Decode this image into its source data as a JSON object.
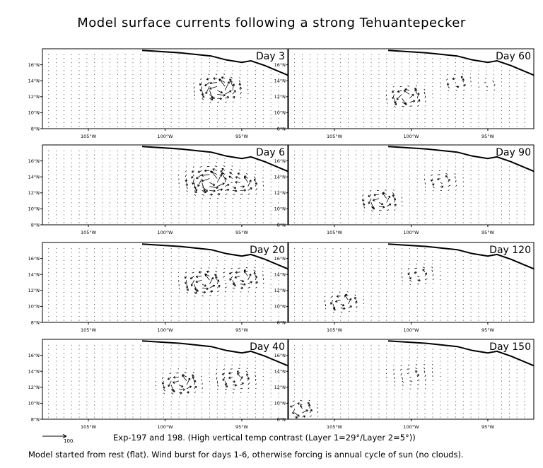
{
  "title": "Model surface currents following a strong Tehuantepecker",
  "footer": {
    "line1": "Exp-197 and 198. (High vertical temp contrast (Layer 1=29°/Layer 2=5°))",
    "line2": "Model started from rest (flat). Wind burst for days 1-6, otherwise forcing is annual cycle of sun (no clouds).",
    "reference_vector_label": "100."
  },
  "chart_data": {
    "type": "vector-field",
    "x_ticks": [
      "105°W",
      "100°W",
      "95°W"
    ],
    "y_ticks": [
      "8°N",
      "10°N",
      "12°N",
      "14°N",
      "16°N"
    ],
    "xlim": [
      -108,
      -92
    ],
    "ylim": [
      8,
      18
    ],
    "panels": [
      {
        "label": "Day 3",
        "eddies": [
          {
            "lon": -96.5,
            "lat": 13.0,
            "strength": 1.0,
            "radius": 1.3
          }
        ]
      },
      {
        "label": "Day 6",
        "eddies": [
          {
            "lon": -97.0,
            "lat": 13.5,
            "strength": 1.0,
            "radius": 1.5
          },
          {
            "lon": -95.0,
            "lat": 13.0,
            "strength": 0.7,
            "radius": 1.1
          }
        ]
      },
      {
        "label": "Day 20",
        "eddies": [
          {
            "lon": -97.5,
            "lat": 13.0,
            "strength": 0.8,
            "radius": 1.3
          },
          {
            "lon": -95.0,
            "lat": 13.5,
            "strength": 0.7,
            "radius": 1.2
          }
        ]
      },
      {
        "label": "Day 40",
        "eddies": [
          {
            "lon": -99.0,
            "lat": 12.5,
            "strength": 0.8,
            "radius": 1.2
          },
          {
            "lon": -95.5,
            "lat": 13.0,
            "strength": 0.5,
            "radius": 1.4
          }
        ]
      },
      {
        "label": "Day 60",
        "eddies": [
          {
            "lon": -100.3,
            "lat": 12.0,
            "strength": 0.8,
            "radius": 1.1
          },
          {
            "lon": -97.0,
            "lat": 13.8,
            "strength": 0.4,
            "radius": 1.0
          },
          {
            "lon": -95.0,
            "lat": 13.5,
            "strength": 0.3,
            "radius": 0.8
          }
        ]
      },
      {
        "label": "Day 90",
        "eddies": [
          {
            "lon": -102.0,
            "lat": 11.0,
            "strength": 0.8,
            "radius": 1.1
          },
          {
            "lon": -98.0,
            "lat": 13.5,
            "strength": 0.4,
            "radius": 1.2
          }
        ]
      },
      {
        "label": "Day 120",
        "eddies": [
          {
            "lon": -104.5,
            "lat": 10.5,
            "strength": 0.7,
            "radius": 1.0
          },
          {
            "lon": -99.5,
            "lat": 14.0,
            "strength": 0.4,
            "radius": 1.2
          }
        ]
      },
      {
        "label": "Day 150",
        "eddies": [
          {
            "lon": -107.3,
            "lat": 9.2,
            "strength": 0.7,
            "radius": 1.0
          },
          {
            "lon": -100.0,
            "lat": 13.5,
            "strength": 0.3,
            "radius": 1.6
          }
        ]
      }
    ]
  }
}
